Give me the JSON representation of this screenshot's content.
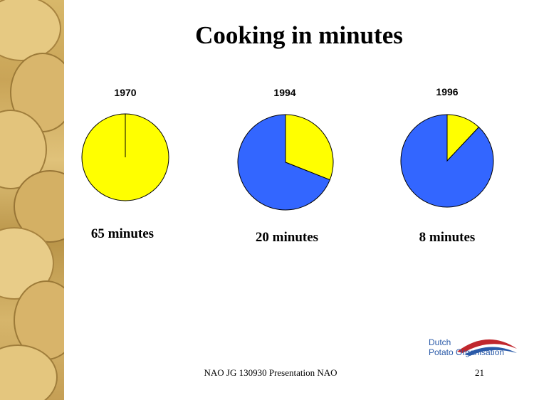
{
  "slide": {
    "title": "Cooking in minutes",
    "footer": "NAO JG 130930 Presentation NAO",
    "page_number": "21"
  },
  "logo": {
    "line1": "Dutch",
    "line2": "Potato Organisation",
    "colors": {
      "text": "#2a5aa8",
      "arc_red": "#c0272d",
      "arc_blue": "#2a5aa8"
    }
  },
  "colors": {
    "yellow": "#ffff00",
    "blue": "#3366ff",
    "outline": "#000000"
  },
  "chart_data": [
    {
      "type": "pie",
      "title": "1970",
      "caption": "65 minutes",
      "slices": [
        {
          "color": "yellow",
          "value": 100
        }
      ]
    },
    {
      "type": "pie",
      "title": "1994",
      "caption": "20 minutes",
      "slices": [
        {
          "color": "yellow",
          "value": 31
        },
        {
          "color": "blue",
          "value": 69
        }
      ]
    },
    {
      "type": "pie",
      "title": "1996",
      "caption": "8 minutes",
      "slices": [
        {
          "color": "yellow",
          "value": 12
        },
        {
          "color": "blue",
          "value": 88
        }
      ]
    }
  ]
}
